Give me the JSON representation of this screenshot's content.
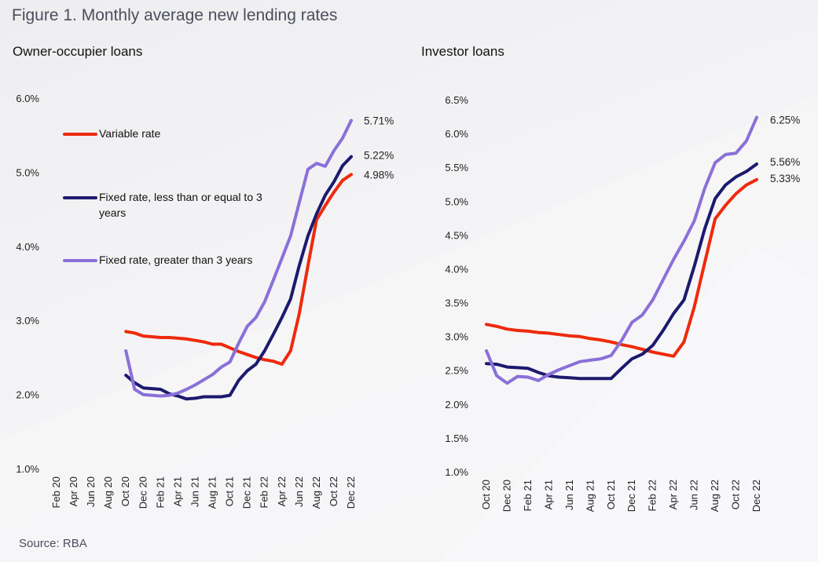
{
  "figure": {
    "title": "Figure 1. Monthly average new lending rates",
    "source": "Source: RBA"
  },
  "legend": [
    {
      "label": "Variable rate",
      "color": "#ee2a0c"
    },
    {
      "label": "Fixed rate, less than or equal to 3 years",
      "color": "#1c1a6e"
    },
    {
      "label": "Fixed rate, greater than 3 years",
      "color": "#8a70d8"
    }
  ],
  "chart_data": [
    {
      "type": "line",
      "title": "Owner-occupier loans",
      "xlabel": "",
      "ylabel": "",
      "ylim": [
        1.0,
        6.0
      ],
      "yticks": [
        "6.0%",
        "5.0%",
        "4.0%",
        "3.0%",
        "2.0%",
        "1.0%"
      ],
      "ytick_values": [
        6.0,
        5.0,
        4.0,
        3.0,
        2.0,
        1.0
      ],
      "xtick_labels": [
        "Feb 20",
        "Apr 20",
        "Jun 20",
        "Aug 20",
        "Oct 20",
        "Dec 20",
        "Feb 21",
        "Apr 21",
        "Jun 21",
        "Aug 21",
        "Oct 21",
        "Dec 21",
        "Feb 22",
        "Apr 22",
        "Jun 22",
        "Aug 22",
        "Oct 22",
        "Dec 22"
      ],
      "x_range": [
        "Feb 20",
        "Dec 22"
      ],
      "data_start": "Oct 20",
      "grid": false,
      "legend_position": "top-left",
      "series": [
        {
          "name": "Variable rate",
          "color": "#ee2a0c",
          "end_label": "4.98%",
          "values": [
            2.86,
            2.84,
            2.8,
            2.79,
            2.78,
            2.78,
            2.77,
            2.76,
            2.74,
            2.72,
            2.69,
            2.69,
            2.64,
            2.59,
            2.55,
            2.51,
            2.48,
            2.46,
            2.42,
            2.6,
            3.1,
            3.75,
            4.37,
            4.56,
            4.74,
            4.9,
            4.98
          ]
        },
        {
          "name": "Fixed rate, less than or equal to 3 years",
          "color": "#1c1a6e",
          "end_label": "5.22%",
          "values": [
            2.27,
            2.17,
            2.1,
            2.09,
            2.08,
            2.02,
            1.99,
            1.95,
            1.96,
            1.98,
            1.98,
            1.98,
            2.0,
            2.2,
            2.33,
            2.42,
            2.6,
            2.82,
            3.05,
            3.3,
            3.75,
            4.15,
            4.45,
            4.7,
            4.88,
            5.1,
            5.22
          ]
        },
        {
          "name": "Fixed rate, greater than 3 years",
          "color": "#8a70d8",
          "end_label": "5.71%",
          "values": [
            2.6,
            2.08,
            2.01,
            2.0,
            1.99,
            2.0,
            2.03,
            2.08,
            2.14,
            2.21,
            2.28,
            2.38,
            2.45,
            2.7,
            2.93,
            3.05,
            3.26,
            3.55,
            3.85,
            4.15,
            4.6,
            5.05,
            5.13,
            5.09,
            5.3,
            5.47,
            5.71
          ]
        }
      ]
    },
    {
      "type": "line",
      "title": "Investor loans",
      "xlabel": "",
      "ylabel": "",
      "ylim": [
        1.0,
        6.5
      ],
      "yticks": [
        "6.5%",
        "6.0%",
        "5.5%",
        "5.0%",
        "4.5%",
        "4.0%",
        "3.5%",
        "3.0%",
        "2.5%",
        "2.0%",
        "1.5%",
        "1.0%"
      ],
      "ytick_values": [
        6.5,
        6.0,
        5.5,
        5.0,
        4.5,
        4.0,
        3.5,
        3.0,
        2.5,
        2.0,
        1.5,
        1.0
      ],
      "xtick_labels": [
        "Oct 20",
        "Dec 20",
        "Feb 21",
        "Apr 21",
        "Jun 21",
        "Aug 21",
        "Oct 21",
        "Dec 21",
        "Feb 22",
        "Apr 22",
        "Jun 22",
        "Aug 22",
        "Oct 22",
        "Dec 22"
      ],
      "x_range": [
        "Oct 20",
        "Dec 22"
      ],
      "data_start": "Oct 20",
      "grid": false,
      "series": [
        {
          "name": "Variable rate",
          "color": "#ee2a0c",
          "end_label": "5.33%",
          "values": [
            3.19,
            3.16,
            3.12,
            3.1,
            3.09,
            3.07,
            3.06,
            3.04,
            3.02,
            3.01,
            2.98,
            2.96,
            2.93,
            2.89,
            2.86,
            2.82,
            2.78,
            2.75,
            2.72,
            2.93,
            3.45,
            4.1,
            4.75,
            4.95,
            5.12,
            5.25,
            5.33
          ]
        },
        {
          "name": "Fixed rate, less than or equal to 3 years",
          "color": "#1c1a6e",
          "end_label": "5.56%",
          "values": [
            2.61,
            2.6,
            2.56,
            2.55,
            2.54,
            2.48,
            2.43,
            2.41,
            2.4,
            2.39,
            2.39,
            2.39,
            2.39,
            2.54,
            2.68,
            2.75,
            2.88,
            3.1,
            3.35,
            3.55,
            4.05,
            4.6,
            5.05,
            5.25,
            5.37,
            5.45,
            5.56
          ]
        },
        {
          "name": "Fixed rate, greater than 3 years",
          "color": "#8a70d8",
          "end_label": "6.25%",
          "values": [
            2.8,
            2.43,
            2.32,
            2.42,
            2.41,
            2.36,
            2.45,
            2.52,
            2.58,
            2.64,
            2.66,
            2.68,
            2.73,
            2.95,
            3.22,
            3.33,
            3.55,
            3.85,
            4.15,
            4.42,
            4.72,
            5.2,
            5.58,
            5.7,
            5.72,
            5.9,
            6.25
          ]
        }
      ]
    }
  ]
}
